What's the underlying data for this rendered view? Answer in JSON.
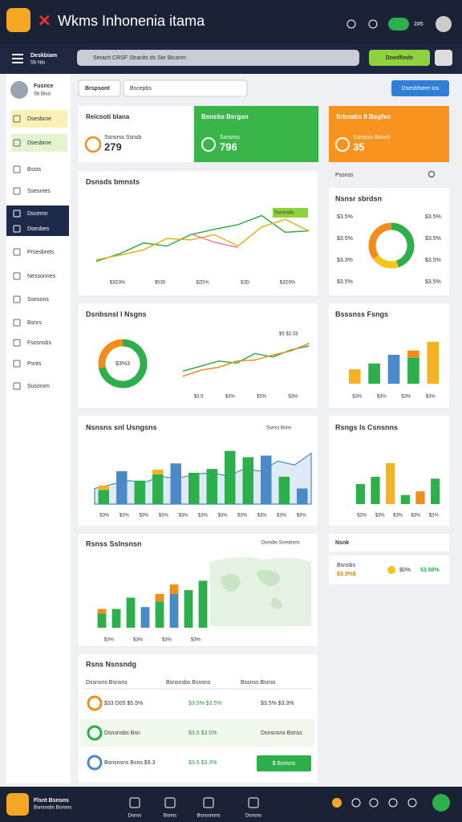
{
  "app": {
    "title": "Wkms Inhonenia itama",
    "badge": "2#5"
  },
  "toolbar": {
    "workspace": "Deskbiam",
    "workspace_sub": "Sb Nlo",
    "search": "Serach CRSF Stranits ds Ste Bicanm",
    "button": "Doedfinde"
  },
  "sidebar": {
    "user": "Fusnce",
    "user_sub": "Sb Bluo",
    "items": [
      "Dsesbroe",
      "Dsesbroe",
      "Bssts",
      "Ssesntes",
      "Dscemn",
      "Dsesbes",
      "Prsesbrets",
      "Nessonnes",
      "Ssesons",
      "Bsnrs",
      "Fsosnsbs",
      "Psnts",
      "Susorom"
    ]
  },
  "filter": {
    "label": "Brspsont",
    "input": "Bscepbs",
    "button": "Dsesbfsere Ios"
  },
  "kpis": [
    {
      "title": "Reicsoti blana",
      "value": "279",
      "sub": "Ssnsrss Ssnsb"
    },
    {
      "title": "Bsnsbs Bsrgsn",
      "value": "796",
      "sub": "Ssnsrss"
    },
    {
      "title": "Srbnsbs 0 Bsgfso",
      "value": "35",
      "sub": "Ssnsrss Bsnsb"
    }
  ],
  "panel_header": "Pssnss",
  "charts": [
    {
      "type": "line",
      "title": "Dsnsds bmnsts",
      "badge": "Ssnsrsbs",
      "ylim": [
        0,
        100
      ],
      "x_labels": [
        "$3D3%",
        "$535",
        "$2D%",
        "$3D",
        "$3D3%"
      ],
      "series": [
        {
          "color": "#2db04b",
          "values": [
            10,
            20,
            34,
            30,
            45,
            52,
            58,
            70,
            48,
            50
          ]
        },
        {
          "color": "#e0b21c",
          "values": [
            12,
            18,
            25,
            40,
            38,
            45,
            30,
            55,
            65,
            50
          ]
        },
        {
          "color": "#e87fb0",
          "values": [
            null,
            null,
            null,
            null,
            46,
            35,
            28,
            null,
            null,
            null
          ]
        }
      ]
    },
    {
      "type": "donut",
      "title": "Nsnsr sbrdsn",
      "values": [
        45,
        20,
        35
      ],
      "colors": [
        "#2db04b",
        "#f5c518",
        "#f28c1b"
      ],
      "labels_left": [
        "$3.5%",
        "$3.5%",
        "$3.3%",
        "$3.5%"
      ],
      "labels_right": [
        "$3.5%",
        "$3.5%",
        "$3.5%",
        "$3.5%"
      ]
    },
    {
      "type": "donut",
      "title": "Dsnbsnsl l Nsgns",
      "values": [
        72,
        28
      ],
      "colors": [
        "#2db04b",
        "#f28c1b"
      ],
      "center": "$3%3"
    },
    {
      "type": "line",
      "badge": "$5 $3.33",
      "ylim": [
        0,
        100
      ],
      "x_labels": [
        "$3.5",
        "$3%",
        "$5%",
        "$3%"
      ],
      "series": [
        {
          "color": "#2db04b",
          "values": [
            20,
            30,
            40,
            36,
            55,
            48,
            62,
            70
          ]
        },
        {
          "color": "#f28c1b",
          "values": [
            10,
            22,
            28,
            40,
            42,
            52,
            60,
            75
          ]
        }
      ]
    },
    {
      "type": "bar",
      "title": "Bsssnss Fsngs",
      "ylim": [
        0,
        70
      ],
      "x_labels": [
        "$3%",
        "$3%",
        "$3%",
        "$3%"
      ],
      "series": [
        {
          "colors": [
            "#f5b324",
            "#2db04b",
            "#4a8ac8",
            "#2db04b",
            "#f5b324"
          ],
          "values": [
            20,
            28,
            40,
            36,
            58
          ]
        },
        {
          "color": "#f28c1b",
          "values": [
            0,
            0,
            0,
            10,
            0
          ]
        }
      ]
    },
    {
      "type": "combo",
      "title": "Nsnsns snl Usngsns",
      "badge": "Ssnss Bsns",
      "ylim": [
        0,
        80
      ],
      "x_labels": [
        "$3%",
        "$3%",
        "$3%",
        "$3%",
        "$3%",
        "$3%",
        "$3%",
        "$3%",
        "$3%",
        "$3%",
        "$3%"
      ],
      "series": [
        {
          "colors": [
            "#2db04b",
            "#4a8ac8",
            "#2db04b",
            "#2db04b",
            "#4a8ac8",
            "#2db04b",
            "#2db04b",
            "#2db04b",
            "#2db04b",
            "#4a8ac8",
            "#2db04b",
            "#4a8ac8"
          ],
          "values": [
            18,
            42,
            30,
            38,
            52,
            40,
            45,
            68,
            60,
            62,
            35,
            20
          ]
        },
        {
          "color": "#f5b324",
          "values": [
            6,
            0,
            0,
            6,
            0,
            0,
            0,
            0,
            0,
            0,
            0,
            0
          ]
        }
      ],
      "area": {
        "color": "#4a8ac8",
        "values": [
          20,
          25,
          30,
          28,
          35,
          33,
          38,
          40,
          36,
          45,
          42,
          55,
          50,
          65
        ]
      }
    },
    {
      "type": "bar",
      "title": "Rsngs ls Csnsnns",
      "ylim": [
        0,
        60
      ],
      "x_labels": [
        "$3%",
        "$3%",
        "$3%",
        "$3%",
        "$3%"
      ],
      "series": [
        {
          "colors": [
            "#2db04b",
            "#2db04b",
            "#f5b324",
            "#2db04b",
            "#f28c1b",
            "#2db04b"
          ],
          "values": [
            22,
            30,
            45,
            10,
            14,
            20
          ]
        },
        {
          "color": "#2db04b",
          "values": [
            0,
            0,
            0,
            0,
            0,
            8
          ]
        }
      ]
    },
    {
      "type": "bar",
      "title": "Rsnss Sslnsnsn",
      "badge": "Dsnsbs Ssnsbsns",
      "ylim": [
        0,
        70
      ],
      "x_labels": [
        "$3%",
        "$3%",
        "$3%",
        "$3%"
      ],
      "series": [
        {
          "colors": [
            "#2db04b",
            "#2db04b",
            "#2db04b",
            "#4a8ac8",
            "#2db04b",
            "#4a8ac8",
            "#2db04b",
            "#2db04b"
          ],
          "values": [
            15,
            20,
            32,
            22,
            28,
            36,
            40,
            50
          ]
        },
        {
          "color": "#f28c1b",
          "values": [
            5,
            0,
            0,
            0,
            8,
            10,
            0,
            0
          ]
        }
      ]
    }
  ],
  "notice": {
    "title": "Nsnk",
    "label": "Bsnsbs",
    "value": "$3.3%$",
    "a": "$0%",
    "b": "$3.50%"
  },
  "table": {
    "title": "Rsns Nsnsndg",
    "headers": [
      "Dssnsns Bsnsns",
      "Bsnsnsbs Bsnsns",
      "Bssnss Bsnss"
    ],
    "rows": [
      [
        "$33 D05 $5.5%",
        "$3.5% $3.5%",
        "$3.5% $3.3%"
      ],
      [
        "Dsnsnsbs Bsn",
        "$3.5 $3.5%",
        "Dsnsnsns Bsnss"
      ],
      [
        "Bsnsnsns Bsns $9.3",
        "$3.5 $3.3%"
      ]
    ],
    "button": "$ Bsnsns"
  },
  "bottom": {
    "brand": "Flsnt Bsnsns",
    "brand_sub": "Bsnsnsbs Bsnsns",
    "nav": [
      "Dsnss",
      "Bsnss",
      "Bsnssnsns",
      "Dsnsns"
    ]
  }
}
